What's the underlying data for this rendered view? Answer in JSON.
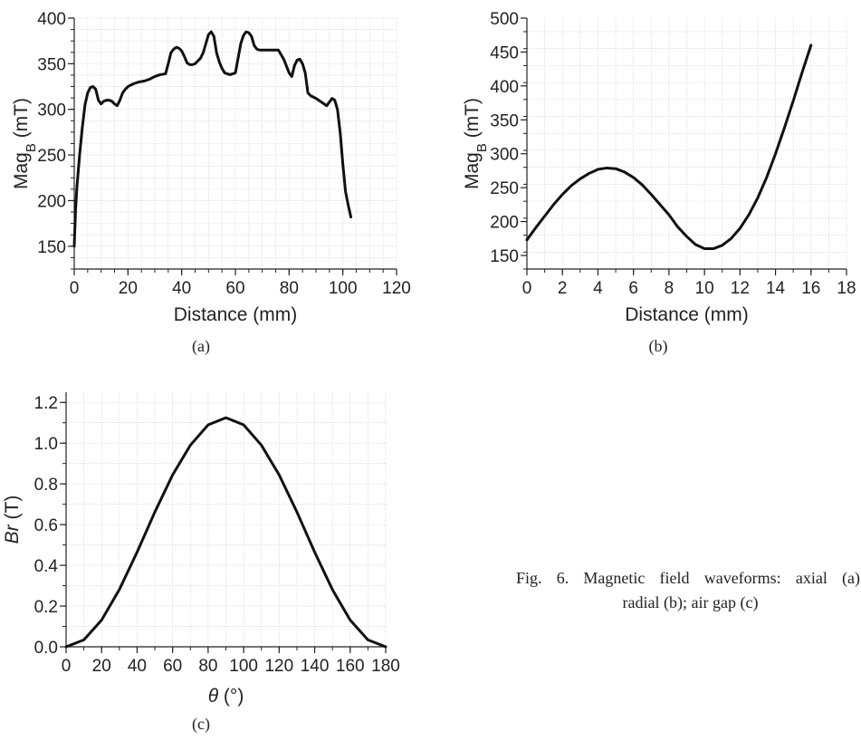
{
  "caption": {
    "line1": "Fig. 6. Magnetic field waveforms: axial (a);",
    "line2": "radial (b); air gap (c)"
  },
  "chart_data": [
    {
      "id": "a",
      "type": "line",
      "panel_label": "(a)",
      "xlabel": "Distance (mm)",
      "ylabel_main": "Mag",
      "ylabel_sub": "B",
      "ylabel_unit": " (mT)",
      "xlim": [
        0,
        120
      ],
      "ylim": [
        125,
        400
      ],
      "xticks": [
        0,
        20,
        40,
        60,
        80,
        100,
        120
      ],
      "yticks": [
        150,
        200,
        250,
        300,
        350,
        400
      ],
      "x_minor": 5,
      "y_minor": 12.5,
      "grid": true,
      "color": "#111111",
      "series": [
        {
          "x": [
            0,
            0.5,
            1,
            2,
            3,
            4,
            5,
            6,
            7,
            8,
            9,
            10,
            11,
            12,
            13,
            14,
            15,
            16,
            17,
            18,
            19,
            20,
            22,
            24,
            26,
            28,
            30,
            32,
            34,
            35,
            36,
            37,
            38,
            39,
            40,
            41,
            42,
            43,
            44,
            45,
            46,
            47,
            48,
            49,
            50,
            51,
            52,
            53,
            54,
            55,
            56,
            57,
            58,
            59,
            60,
            61,
            62,
            63,
            64,
            65,
            66,
            67,
            68,
            69,
            70,
            72,
            74,
            76,
            78,
            80,
            81,
            82,
            83,
            84,
            85,
            86,
            87,
            88,
            90,
            92,
            94,
            95,
            96,
            97,
            98,
            99,
            100,
            101,
            102,
            103
          ],
          "y": [
            150,
            190,
            215,
            250,
            280,
            305,
            318,
            324,
            325,
            322,
            310,
            306,
            309,
            310,
            310,
            309,
            306,
            304,
            310,
            318,
            322,
            325,
            328,
            330,
            331,
            333,
            336,
            338,
            339,
            350,
            362,
            366,
            368,
            367,
            364,
            358,
            351,
            349,
            349,
            350,
            353,
            356,
            362,
            372,
            382,
            385,
            380,
            362,
            352,
            345,
            340,
            339,
            338,
            339,
            340,
            356,
            372,
            381,
            385,
            384,
            380,
            370,
            366,
            365,
            365,
            365,
            365,
            365,
            355,
            340,
            336,
            348,
            354,
            355,
            350,
            340,
            318,
            315,
            312,
            308,
            304,
            308,
            312,
            310,
            300,
            275,
            240,
            210,
            195,
            182
          ]
        }
      ]
    },
    {
      "id": "b",
      "type": "line",
      "panel_label": "(b)",
      "xlabel": "Distance (mm)",
      "ylabel_main": "Mag",
      "ylabel_sub": "B",
      "ylabel_unit": " (mT)",
      "xlim": [
        0,
        18
      ],
      "ylim": [
        130,
        500
      ],
      "xticks": [
        0,
        2,
        4,
        6,
        8,
        10,
        12,
        14,
        16,
        18
      ],
      "yticks": [
        150,
        200,
        250,
        300,
        350,
        400,
        450,
        500
      ],
      "x_minor": 1,
      "y_minor": 25,
      "grid": true,
      "color": "#111111",
      "series": [
        {
          "x": [
            0,
            0.5,
            1,
            1.5,
            2,
            2.5,
            3,
            3.5,
            4,
            4.5,
            5,
            5.5,
            6,
            6.5,
            7,
            7.5,
            8,
            8.5,
            9,
            9.5,
            10,
            10.5,
            11,
            11.5,
            12,
            12.5,
            13,
            13.5,
            14,
            14.5,
            15,
            15.5,
            16
          ],
          "y": [
            173,
            191,
            208,
            225,
            240,
            253,
            263,
            271,
            277,
            279,
            278,
            273,
            265,
            254,
            240,
            225,
            210,
            192,
            178,
            166,
            160,
            160,
            165,
            175,
            190,
            210,
            235,
            265,
            300,
            338,
            378,
            420,
            460
          ]
        }
      ]
    },
    {
      "id": "c",
      "type": "line",
      "panel_label": "(c)",
      "xlabel_sym": "θ",
      "xlabel_unit": " (°)",
      "ylabel_sym": "Br",
      "ylabel_unit": " (T)",
      "xlim": [
        0,
        180
      ],
      "ylim": [
        0,
        1.25
      ],
      "xticks": [
        0,
        20,
        40,
        60,
        80,
        100,
        120,
        140,
        160,
        180
      ],
      "yticks": [
        0.0,
        0.2,
        0.4,
        0.6,
        0.8,
        1.0,
        1.2
      ],
      "ytick_labels": [
        "0.0",
        "0.2",
        "0.4",
        "0.6",
        "0.8",
        "1.0",
        "1.2"
      ],
      "x_minor": 10,
      "y_minor": 0.1,
      "grid": true,
      "color": "#111111",
      "series": [
        {
          "x": [
            0,
            10,
            20,
            30,
            40,
            50,
            60,
            70,
            80,
            90,
            100,
            110,
            120,
            130,
            140,
            150,
            160,
            170,
            180
          ],
          "y": [
            0.0,
            0.034,
            0.131,
            0.281,
            0.465,
            0.662,
            0.844,
            0.99,
            1.09,
            1.125,
            1.09,
            0.99,
            0.844,
            0.662,
            0.465,
            0.281,
            0.131,
            0.034,
            0.0
          ]
        }
      ]
    }
  ]
}
